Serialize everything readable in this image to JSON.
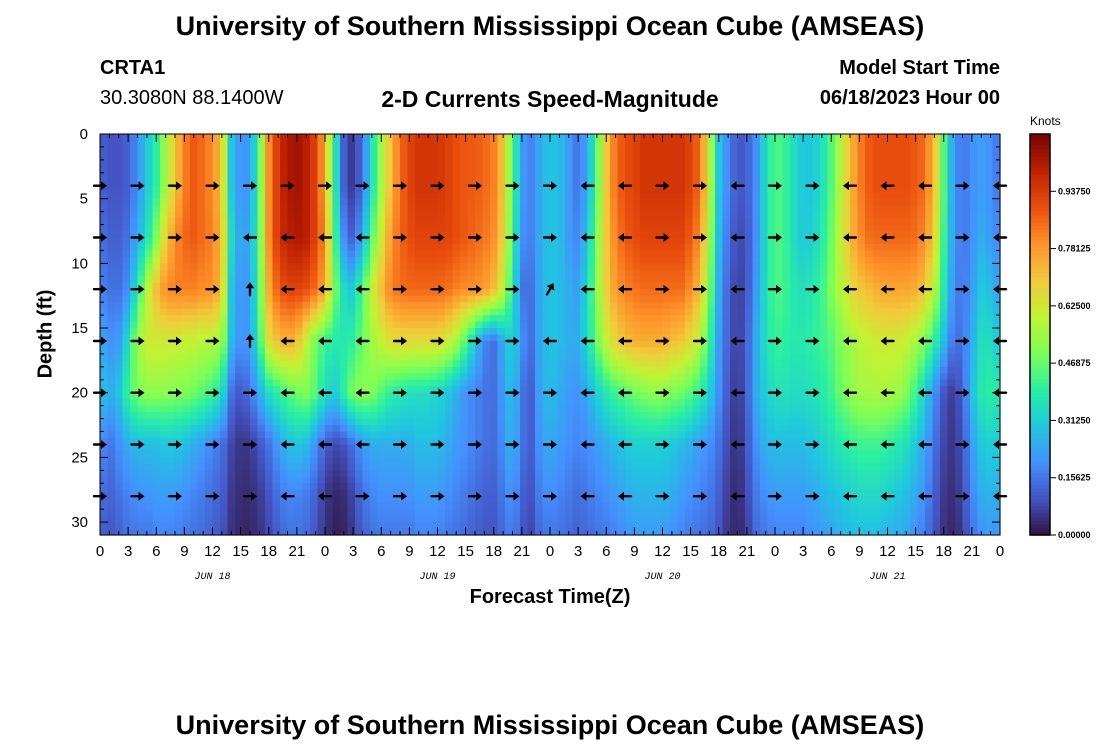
{
  "page_title": "University of Southern Mississippi Ocean Cube (AMSEAS)",
  "station": {
    "name": "CRTA1",
    "coords": "30.3080N  88.1400W"
  },
  "model_start": {
    "label": "Model Start Time",
    "value": "06/18/2023 Hour 00"
  },
  "footer_title": "University of Southern Mississippi Ocean Cube (AMSEAS)",
  "chart_data": {
    "type": "heatmap",
    "title": "2-D Currents Speed-Magnitude",
    "xlabel": "Forecast Time(Z)",
    "ylabel": "Depth (ft)",
    "x_range_hours": [
      0,
      96
    ],
    "ylim": [
      0,
      31
    ],
    "y_inverted": true,
    "x_tick_labels": [
      "0",
      "3",
      "6",
      "9",
      "12",
      "15",
      "18",
      "21",
      "0",
      "3",
      "6",
      "9",
      "12",
      "15",
      "18",
      "21",
      "0",
      "3",
      "6",
      "9",
      "12",
      "15",
      "18",
      "21",
      "0",
      "3",
      "6",
      "9",
      "12",
      "15",
      "18",
      "21",
      "0"
    ],
    "y_ticks": [
      0,
      5,
      10,
      15,
      20,
      25,
      30
    ],
    "y_tick_labels": [
      "0",
      "5",
      "10",
      "15",
      "20",
      "25",
      "30"
    ],
    "date_labels": [
      {
        "hour": 12,
        "text": "JUN 18"
      },
      {
        "hour": 36,
        "text": "JUN 19"
      },
      {
        "hour": 60,
        "text": "JUN 20"
      },
      {
        "hour": 84,
        "text": "JUN 21"
      }
    ],
    "colorbar": {
      "unit": "Knots",
      "min": 0,
      "max": 1.09375,
      "tick_values": [
        0.0,
        0.15625,
        0.3125,
        0.46875,
        0.625,
        0.78125,
        0.9375
      ],
      "tick_labels": [
        "0.00000",
        "0.15625",
        "0.31250",
        "0.46875",
        "0.62500",
        "0.78125",
        "0.93750"
      ],
      "colors": [
        "#30123b",
        "#4454c4",
        "#4490fe",
        "#1fc8de",
        "#29efa2",
        "#7dff56",
        "#c1f334",
        "#f1ca3a",
        "#fe922a",
        "#ea4f0d",
        "#be2102",
        "#7a0403"
      ]
    },
    "time_knots_hours": [
      0,
      1,
      2,
      3,
      4,
      5,
      6,
      7,
      8,
      9,
      10,
      11,
      12,
      13,
      14,
      15,
      16,
      17,
      18,
      19,
      20,
      21,
      22,
      23,
      24,
      25,
      26,
      27,
      28,
      29,
      30,
      31,
      32,
      33,
      34,
      35,
      36,
      37,
      38,
      39,
      40,
      41,
      42,
      43,
      44,
      45,
      46,
      47,
      48,
      49,
      50,
      51,
      52,
      53,
      54,
      55,
      56,
      57,
      58,
      59,
      60,
      61,
      62,
      63,
      64,
      65,
      66,
      67,
      68,
      69,
      70,
      71,
      72,
      73,
      74,
      75,
      76,
      77,
      78,
      79,
      80,
      81,
      82,
      83,
      84,
      85,
      86,
      87,
      88,
      89,
      90,
      91,
      92,
      93,
      94,
      95,
      96
    ],
    "depth_knots_ft": [
      0,
      4,
      8,
      12,
      16,
      20,
      24,
      28,
      31
    ],
    "speed_knots": [
      [
        0.12,
        0.1,
        0.1,
        0.12,
        0.2,
        0.3,
        0.4,
        0.55,
        0.7,
        0.82,
        0.88,
        0.85,
        0.8,
        0.7,
        0.3,
        0.2,
        0.22,
        0.45,
        0.8,
        0.95,
        1.02,
        1.04,
        1.0,
        0.92,
        0.75,
        0.4,
        0.12,
        0.05,
        0.15,
        0.35,
        0.55,
        0.72,
        0.85,
        0.92,
        0.95,
        0.95,
        0.95,
        0.93,
        0.9,
        0.88,
        0.88,
        0.86,
        0.82,
        0.7,
        0.45,
        0.22,
        0.18,
        0.25,
        0.3,
        0.28,
        0.22,
        0.15,
        0.25,
        0.45,
        0.7,
        0.85,
        0.9,
        0.92,
        0.95,
        0.95,
        0.95,
        0.95,
        0.95,
        0.92,
        0.85,
        0.6,
        0.3,
        0.18,
        0.1,
        0.12,
        0.2,
        0.35,
        0.45,
        0.42,
        0.35,
        0.3,
        0.3,
        0.35,
        0.45,
        0.58,
        0.72,
        0.82,
        0.88,
        0.9,
        0.9,
        0.9,
        0.9,
        0.88,
        0.85,
        0.72,
        0.45,
        0.22,
        0.15,
        0.2,
        0.22,
        0.2,
        0.15
      ],
      [
        0.12,
        0.1,
        0.1,
        0.12,
        0.2,
        0.3,
        0.4,
        0.55,
        0.7,
        0.82,
        0.88,
        0.85,
        0.8,
        0.7,
        0.3,
        0.2,
        0.22,
        0.45,
        0.8,
        0.95,
        1.02,
        1.04,
        1.0,
        0.92,
        0.75,
        0.4,
        0.12,
        0.05,
        0.15,
        0.35,
        0.55,
        0.72,
        0.85,
        0.92,
        0.95,
        0.95,
        0.95,
        0.93,
        0.9,
        0.88,
        0.88,
        0.86,
        0.82,
        0.7,
        0.45,
        0.22,
        0.18,
        0.25,
        0.3,
        0.28,
        0.22,
        0.15,
        0.25,
        0.45,
        0.7,
        0.85,
        0.9,
        0.92,
        0.95,
        0.95,
        0.95,
        0.95,
        0.95,
        0.92,
        0.85,
        0.6,
        0.3,
        0.18,
        0.1,
        0.12,
        0.2,
        0.35,
        0.45,
        0.42,
        0.35,
        0.3,
        0.3,
        0.35,
        0.45,
        0.58,
        0.72,
        0.82,
        0.88,
        0.9,
        0.9,
        0.9,
        0.9,
        0.88,
        0.85,
        0.72,
        0.45,
        0.22,
        0.15,
        0.2,
        0.22,
        0.2,
        0.15
      ],
      [
        0.15,
        0.12,
        0.12,
        0.15,
        0.25,
        0.35,
        0.5,
        0.68,
        0.8,
        0.86,
        0.88,
        0.85,
        0.82,
        0.72,
        0.35,
        0.22,
        0.25,
        0.45,
        0.8,
        0.95,
        1.0,
        1.02,
        1.0,
        0.92,
        0.8,
        0.45,
        0.2,
        0.1,
        0.25,
        0.45,
        0.62,
        0.78,
        0.86,
        0.9,
        0.92,
        0.92,
        0.92,
        0.92,
        0.9,
        0.88,
        0.86,
        0.84,
        0.8,
        0.68,
        0.42,
        0.2,
        0.18,
        0.25,
        0.3,
        0.28,
        0.22,
        0.18,
        0.3,
        0.5,
        0.7,
        0.82,
        0.88,
        0.9,
        0.92,
        0.92,
        0.92,
        0.92,
        0.92,
        0.88,
        0.8,
        0.55,
        0.28,
        0.15,
        0.08,
        0.1,
        0.2,
        0.35,
        0.45,
        0.42,
        0.35,
        0.3,
        0.32,
        0.38,
        0.48,
        0.6,
        0.72,
        0.8,
        0.85,
        0.86,
        0.86,
        0.86,
        0.86,
        0.85,
        0.8,
        0.68,
        0.42,
        0.22,
        0.15,
        0.2,
        0.25,
        0.22,
        0.18
      ],
      [
        0.18,
        0.15,
        0.15,
        0.2,
        0.38,
        0.58,
        0.72,
        0.8,
        0.82,
        0.82,
        0.82,
        0.8,
        0.8,
        0.7,
        0.3,
        0.2,
        0.22,
        0.45,
        0.75,
        0.88,
        0.92,
        0.92,
        0.9,
        0.85,
        0.75,
        0.5,
        0.35,
        0.3,
        0.45,
        0.6,
        0.72,
        0.82,
        0.85,
        0.86,
        0.86,
        0.86,
        0.86,
        0.85,
        0.82,
        0.8,
        0.8,
        0.78,
        0.72,
        0.6,
        0.38,
        0.15,
        0.15,
        0.25,
        0.3,
        0.28,
        0.25,
        0.22,
        0.35,
        0.52,
        0.68,
        0.78,
        0.82,
        0.84,
        0.85,
        0.85,
        0.85,
        0.85,
        0.85,
        0.8,
        0.72,
        0.5,
        0.25,
        0.12,
        0.06,
        0.1,
        0.22,
        0.35,
        0.45,
        0.42,
        0.38,
        0.35,
        0.38,
        0.42,
        0.5,
        0.58,
        0.65,
        0.7,
        0.72,
        0.75,
        0.76,
        0.76,
        0.76,
        0.75,
        0.7,
        0.58,
        0.38,
        0.2,
        0.15,
        0.22,
        0.3,
        0.28,
        0.22
      ],
      [
        0.25,
        0.2,
        0.22,
        0.35,
        0.55,
        0.62,
        0.62,
        0.62,
        0.62,
        0.6,
        0.6,
        0.58,
        0.58,
        0.55,
        0.28,
        0.2,
        0.22,
        0.42,
        0.65,
        0.72,
        0.75,
        0.72,
        0.6,
        0.48,
        0.42,
        0.38,
        0.38,
        0.4,
        0.48,
        0.55,
        0.6,
        0.65,
        0.66,
        0.66,
        0.66,
        0.66,
        0.66,
        0.62,
        0.55,
        0.45,
        0.3,
        0.18,
        0.15,
        0.25,
        0.35,
        0.2,
        0.15,
        0.25,
        0.3,
        0.28,
        0.25,
        0.25,
        0.35,
        0.48,
        0.6,
        0.68,
        0.72,
        0.74,
        0.75,
        0.75,
        0.75,
        0.72,
        0.7,
        0.65,
        0.58,
        0.42,
        0.22,
        0.12,
        0.06,
        0.12,
        0.25,
        0.35,
        0.42,
        0.4,
        0.38,
        0.38,
        0.4,
        0.42,
        0.45,
        0.5,
        0.55,
        0.58,
        0.6,
        0.62,
        0.62,
        0.62,
        0.6,
        0.56,
        0.5,
        0.4,
        0.28,
        0.15,
        0.15,
        0.25,
        0.35,
        0.35,
        0.3
      ],
      [
        0.3,
        0.25,
        0.3,
        0.42,
        0.5,
        0.52,
        0.52,
        0.52,
        0.5,
        0.5,
        0.48,
        0.45,
        0.42,
        0.35,
        0.15,
        0.1,
        0.15,
        0.25,
        0.35,
        0.4,
        0.45,
        0.48,
        0.5,
        0.45,
        0.35,
        0.3,
        0.4,
        0.5,
        0.52,
        0.5,
        0.45,
        0.4,
        0.38,
        0.36,
        0.35,
        0.35,
        0.33,
        0.3,
        0.25,
        0.2,
        0.18,
        0.15,
        0.15,
        0.22,
        0.3,
        0.15,
        0.12,
        0.25,
        0.28,
        0.25,
        0.22,
        0.2,
        0.25,
        0.32,
        0.38,
        0.42,
        0.45,
        0.48,
        0.5,
        0.52,
        0.52,
        0.5,
        0.48,
        0.45,
        0.4,
        0.32,
        0.2,
        0.1,
        0.05,
        0.12,
        0.25,
        0.32,
        0.36,
        0.36,
        0.35,
        0.35,
        0.36,
        0.38,
        0.42,
        0.48,
        0.52,
        0.55,
        0.56,
        0.56,
        0.56,
        0.55,
        0.5,
        0.42,
        0.32,
        0.2,
        0.1,
        0.06,
        0.12,
        0.28,
        0.38,
        0.4,
        0.38
      ],
      [
        0.2,
        0.15,
        0.2,
        0.25,
        0.28,
        0.28,
        0.28,
        0.3,
        0.3,
        0.28,
        0.25,
        0.22,
        0.18,
        0.15,
        0.08,
        0.05,
        0.06,
        0.1,
        0.15,
        0.22,
        0.28,
        0.3,
        0.28,
        0.2,
        0.12,
        0.08,
        0.1,
        0.15,
        0.22,
        0.25,
        0.25,
        0.25,
        0.25,
        0.25,
        0.28,
        0.28,
        0.28,
        0.25,
        0.22,
        0.2,
        0.18,
        0.15,
        0.14,
        0.2,
        0.28,
        0.15,
        0.12,
        0.22,
        0.25,
        0.22,
        0.2,
        0.18,
        0.2,
        0.22,
        0.25,
        0.28,
        0.3,
        0.32,
        0.32,
        0.32,
        0.32,
        0.3,
        0.28,
        0.25,
        0.22,
        0.2,
        0.15,
        0.08,
        0.04,
        0.1,
        0.2,
        0.26,
        0.28,
        0.28,
        0.28,
        0.28,
        0.3,
        0.32,
        0.35,
        0.38,
        0.4,
        0.42,
        0.42,
        0.42,
        0.4,
        0.38,
        0.35,
        0.3,
        0.24,
        0.15,
        0.08,
        0.05,
        0.1,
        0.22,
        0.3,
        0.32,
        0.3
      ],
      [
        0.15,
        0.12,
        0.15,
        0.18,
        0.2,
        0.2,
        0.22,
        0.22,
        0.22,
        0.2,
        0.18,
        0.16,
        0.14,
        0.12,
        0.06,
        0.04,
        0.04,
        0.06,
        0.1,
        0.15,
        0.18,
        0.18,
        0.16,
        0.12,
        0.06,
        0.03,
        0.04,
        0.08,
        0.15,
        0.18,
        0.2,
        0.2,
        0.2,
        0.2,
        0.22,
        0.22,
        0.22,
        0.2,
        0.18,
        0.16,
        0.14,
        0.12,
        0.12,
        0.16,
        0.22,
        0.12,
        0.1,
        0.18,
        0.2,
        0.18,
        0.16,
        0.14,
        0.16,
        0.18,
        0.2,
        0.22,
        0.24,
        0.26,
        0.26,
        0.26,
        0.26,
        0.25,
        0.22,
        0.2,
        0.18,
        0.16,
        0.12,
        0.06,
        0.03,
        0.08,
        0.16,
        0.2,
        0.22,
        0.22,
        0.22,
        0.22,
        0.24,
        0.26,
        0.28,
        0.3,
        0.32,
        0.34,
        0.34,
        0.34,
        0.32,
        0.3,
        0.28,
        0.24,
        0.2,
        0.12,
        0.06,
        0.04,
        0.08,
        0.18,
        0.25,
        0.26,
        0.25
      ],
      [
        0.12,
        0.1,
        0.12,
        0.15,
        0.16,
        0.16,
        0.18,
        0.18,
        0.18,
        0.16,
        0.15,
        0.14,
        0.12,
        0.1,
        0.05,
        0.03,
        0.03,
        0.05,
        0.08,
        0.12,
        0.15,
        0.15,
        0.14,
        0.1,
        0.05,
        0.02,
        0.03,
        0.06,
        0.12,
        0.15,
        0.16,
        0.16,
        0.16,
        0.16,
        0.18,
        0.18,
        0.18,
        0.16,
        0.15,
        0.14,
        0.12,
        0.1,
        0.1,
        0.14,
        0.18,
        0.1,
        0.08,
        0.15,
        0.16,
        0.15,
        0.14,
        0.12,
        0.14,
        0.15,
        0.16,
        0.18,
        0.2,
        0.22,
        0.22,
        0.22,
        0.22,
        0.2,
        0.18,
        0.16,
        0.15,
        0.14,
        0.1,
        0.05,
        0.03,
        0.06,
        0.14,
        0.16,
        0.18,
        0.18,
        0.18,
        0.18,
        0.2,
        0.22,
        0.24,
        0.26,
        0.28,
        0.28,
        0.28,
        0.28,
        0.26,
        0.25,
        0.24,
        0.2,
        0.16,
        0.1,
        0.05,
        0.03,
        0.06,
        0.15,
        0.2,
        0.22,
        0.2
      ]
    ],
    "vectors": {
      "hours": [
        0,
        4,
        8,
        12,
        16,
        20,
        24,
        28,
        32,
        36,
        40,
        44,
        48,
        52,
        56,
        60,
        64,
        68,
        72,
        76,
        80,
        84,
        88,
        92,
        96
      ],
      "depths_ft": [
        4,
        8,
        12,
        16,
        20,
        24,
        28
      ],
      "direction_deg": [
        [
          0,
          0,
          0,
          0,
          0,
          0,
          0,
          0,
          0,
          0,
          0,
          0,
          0,
          180,
          180,
          0,
          0,
          180,
          0,
          0,
          180,
          180,
          180,
          0,
          180
        ],
        [
          0,
          0,
          0,
          0,
          180,
          180,
          180,
          180,
          0,
          0,
          0,
          0,
          0,
          180,
          180,
          0,
          0,
          180,
          0,
          0,
          180,
          180,
          180,
          0,
          180
        ],
        [
          0,
          0,
          0,
          0,
          90,
          180,
          180,
          180,
          0,
          0,
          0,
          0,
          60,
          180,
          180,
          0,
          0,
          180,
          0,
          0,
          180,
          180,
          180,
          0,
          180
        ],
        [
          0,
          0,
          0,
          0,
          90,
          180,
          180,
          180,
          0,
          0,
          0,
          0,
          180,
          180,
          180,
          0,
          0,
          180,
          0,
          0,
          180,
          180,
          180,
          0,
          180
        ],
        [
          0,
          0,
          0,
          0,
          0,
          180,
          180,
          180,
          0,
          0,
          0,
          0,
          0,
          180,
          180,
          0,
          0,
          180,
          0,
          0,
          180,
          180,
          180,
          0,
          180
        ],
        [
          0,
          0,
          0,
          0,
          0,
          180,
          180,
          180,
          0,
          0,
          0,
          0,
          0,
          180,
          180,
          0,
          0,
          180,
          0,
          0,
          180,
          180,
          180,
          0,
          180
        ],
        [
          0,
          0,
          0,
          0,
          0,
          180,
          180,
          0,
          0,
          0,
          0,
          0,
          0,
          180,
          180,
          0,
          0,
          180,
          0,
          0,
          180,
          180,
          180,
          0,
          180
        ]
      ]
    }
  }
}
